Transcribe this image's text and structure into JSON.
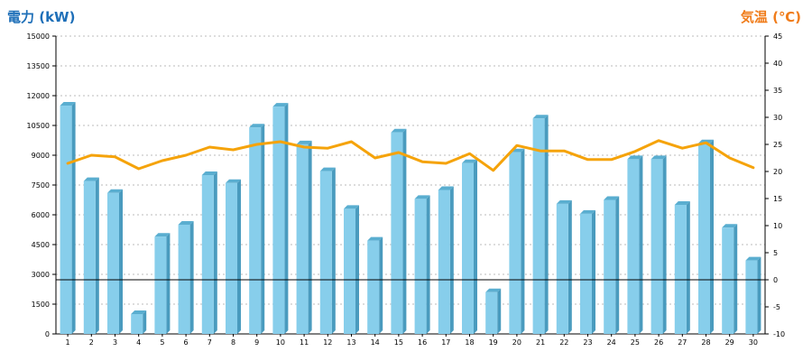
{
  "chart_data": {
    "type": "bar",
    "title": "",
    "y_left_label": "電力 (kW)",
    "y_right_label": "気温 (℃)",
    "categories": [
      "1",
      "2",
      "3",
      "4",
      "5",
      "6",
      "7",
      "8",
      "9",
      "10",
      "11",
      "12",
      "13",
      "14",
      "15",
      "16",
      "17",
      "18",
      "19",
      "20",
      "21",
      "22",
      "23",
      "24",
      "25",
      "26",
      "27",
      "28",
      "29",
      "30"
    ],
    "series": [
      {
        "type": "bar",
        "axis": "left",
        "values": [
          11500,
          7700,
          7100,
          1000,
          4900,
          5500,
          8000,
          7600,
          10400,
          11450,
          9550,
          8200,
          6300,
          4700,
          10150,
          6800,
          7250,
          8600,
          2100,
          9150,
          10850,
          6550,
          6050,
          6750,
          8800,
          8800,
          6500,
          9600,
          5350,
          3700
        ]
      },
      {
        "type": "line",
        "axis": "right",
        "values": [
          21.5,
          23,
          22.7,
          20.5,
          22,
          23,
          24.5,
          24,
          25,
          25.5,
          24.5,
          24.3,
          25.5,
          22.5,
          23.5,
          21.8,
          21.5,
          23.3,
          20.2,
          24.8,
          23.8,
          23.8,
          22.2,
          22.2,
          23.7,
          25.7,
          24.3,
          25.3,
          22.5,
          20.7
        ]
      }
    ],
    "y_left_ticks": [
      "0",
      "1500",
      "3000",
      "4500",
      "6000",
      "7500",
      "9000",
      "10500",
      "12000",
      "13500",
      "15000"
    ],
    "y_left_range": [
      0,
      15000
    ],
    "y_right_ticks": [
      "-10",
      "-5",
      "0",
      "5",
      "10",
      "15",
      "20",
      "25",
      "30",
      "35",
      "40",
      "45"
    ],
    "y_right_range": [
      -10,
      45
    ],
    "grid": true,
    "colors": {
      "bar_front": "#87CEEB",
      "bar_side": "#4A9BBE",
      "bar_top": "#5AAED0",
      "line": "#F5A30A",
      "left_title": "#1E6FB8",
      "right_title": "#F07C1A",
      "grid": "#BBBBBB",
      "zero_line": "#000000"
    }
  }
}
